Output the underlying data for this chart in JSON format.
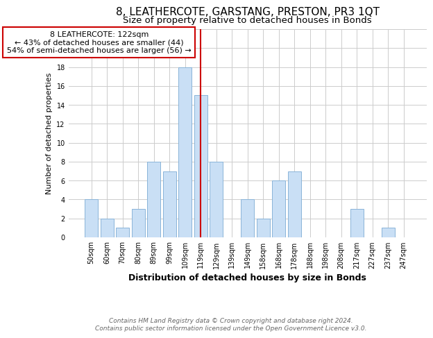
{
  "title": "8, LEATHERCOTE, GARSTANG, PRESTON, PR3 1QT",
  "subtitle": "Size of property relative to detached houses in Bonds",
  "xlabel": "Distribution of detached houses by size in Bonds",
  "ylabel": "Number of detached properties",
  "bar_labels": [
    "50sqm",
    "60sqm",
    "70sqm",
    "80sqm",
    "89sqm",
    "99sqm",
    "109sqm",
    "119sqm",
    "129sqm",
    "139sqm",
    "149sqm",
    "158sqm",
    "168sqm",
    "178sqm",
    "188sqm",
    "198sqm",
    "208sqm",
    "217sqm",
    "227sqm",
    "237sqm",
    "247sqm"
  ],
  "bar_values": [
    4,
    2,
    1,
    3,
    8,
    7,
    18,
    15,
    8,
    0,
    4,
    2,
    6,
    7,
    0,
    0,
    0,
    3,
    0,
    1,
    0
  ],
  "highlight_index": 7,
  "bar_color": "#c9dff5",
  "bar_edge_color": "#8ab4d8",
  "highlight_line_color": "#cc0000",
  "annotation_box_edge_color": "#cc0000",
  "annotation_title": "8 LEATHERCOTE: 122sqm",
  "annotation_line1": "← 43% of detached houses are smaller (44)",
  "annotation_line2": "54% of semi-detached houses are larger (56) →",
  "footer1": "Contains HM Land Registry data © Crown copyright and database right 2024.",
  "footer2": "Contains public sector information licensed under the Open Government Licence v3.0.",
  "ylim": [
    0,
    22
  ],
  "yticks": [
    0,
    2,
    4,
    6,
    8,
    10,
    12,
    14,
    16,
    18,
    20,
    22
  ],
  "title_fontsize": 11,
  "subtitle_fontsize": 9.5,
  "xlabel_fontsize": 9,
  "ylabel_fontsize": 8,
  "tick_fontsize": 7,
  "annotation_fontsize": 8,
  "footer_fontsize": 6.5,
  "background_color": "#ffffff",
  "grid_color": "#cccccc"
}
